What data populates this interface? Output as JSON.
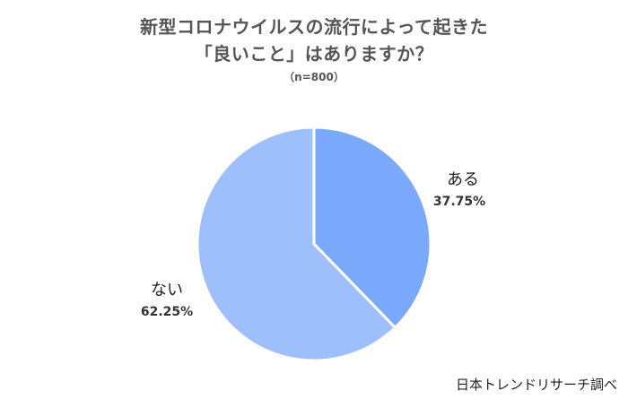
{
  "chart_data": {
    "type": "pie",
    "title_lines": [
      "新型コロナウイルスの流行によって起きた",
      "「良いこと」はありますか？"
    ],
    "subtitle": "（n=800）",
    "categories": [
      "ある",
      "ない"
    ],
    "values": [
      37.75,
      62.25
    ],
    "value_labels": [
      "37.75%",
      "62.25%"
    ],
    "colors": [
      "#7aa9fb",
      "#9dbffc"
    ],
    "start_angle": "12 o'clock",
    "direction": "clockwise"
  },
  "source": "日本トレンドリサーチ調べ"
}
